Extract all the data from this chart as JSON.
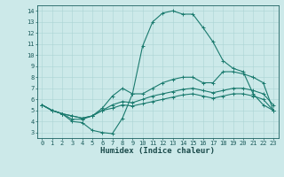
{
  "xlabel": "Humidex (Indice chaleur)",
  "bg_color": "#cce9e9",
  "line_color": "#1a7a6e",
  "xlim": [
    -0.5,
    23.5
  ],
  "ylim": [
    2.5,
    14.5
  ],
  "xticks": [
    0,
    1,
    2,
    3,
    4,
    5,
    6,
    7,
    8,
    9,
    10,
    11,
    12,
    13,
    14,
    15,
    16,
    17,
    18,
    19,
    20,
    21,
    22,
    23
  ],
  "yticks": [
    3,
    4,
    5,
    6,
    7,
    8,
    9,
    10,
    11,
    12,
    13,
    14
  ],
  "series": [
    {
      "x": [
        0,
        1,
        2,
        3,
        4,
        5,
        6,
        7,
        8,
        9,
        10,
        11,
        12,
        13,
        14,
        15,
        16,
        17,
        18,
        19,
        20,
        21,
        22,
        23
      ],
      "y": [
        5.5,
        5.0,
        4.7,
        4.0,
        3.9,
        3.2,
        3.0,
        2.9,
        4.3,
        6.5,
        10.8,
        13.0,
        13.8,
        14.0,
        13.7,
        13.7,
        12.5,
        11.2,
        9.5,
        8.8,
        8.5,
        6.5,
        5.5,
        5.0
      ]
    },
    {
      "x": [
        0,
        1,
        2,
        3,
        4,
        5,
        6,
        7,
        8,
        9,
        10,
        11,
        12,
        13,
        14,
        15,
        16,
        17,
        18,
        19,
        20,
        21,
        22,
        23
      ],
      "y": [
        5.5,
        5.0,
        4.7,
        4.2,
        4.2,
        4.5,
        5.2,
        6.3,
        7.0,
        6.5,
        6.5,
        7.0,
        7.5,
        7.8,
        8.0,
        8.0,
        7.5,
        7.5,
        8.5,
        8.5,
        8.3,
        8.0,
        7.5,
        5.0
      ]
    },
    {
      "x": [
        0,
        1,
        2,
        3,
        4,
        5,
        6,
        7,
        8,
        9,
        10,
        11,
        12,
        13,
        14,
        15,
        16,
        17,
        18,
        19,
        20,
        21,
        22,
        23
      ],
      "y": [
        5.5,
        5.0,
        4.7,
        4.5,
        4.3,
        4.5,
        5.0,
        5.5,
        5.8,
        5.7,
        6.0,
        6.3,
        6.5,
        6.7,
        6.9,
        7.0,
        6.8,
        6.6,
        6.8,
        7.0,
        7.0,
        6.8,
        6.5,
        5.5
      ]
    },
    {
      "x": [
        0,
        1,
        2,
        3,
        4,
        5,
        6,
        7,
        8,
        9,
        10,
        11,
        12,
        13,
        14,
        15,
        16,
        17,
        18,
        19,
        20,
        21,
        22,
        23
      ],
      "y": [
        5.5,
        5.0,
        4.7,
        4.5,
        4.3,
        4.5,
        5.0,
        5.2,
        5.5,
        5.4,
        5.6,
        5.8,
        6.0,
        6.2,
        6.4,
        6.5,
        6.3,
        6.1,
        6.3,
        6.5,
        6.5,
        6.3,
        6.0,
        5.0
      ]
    }
  ],
  "grid_color": "#aad4d4",
  "tick_fontsize": 5,
  "label_fontsize": 6.5
}
